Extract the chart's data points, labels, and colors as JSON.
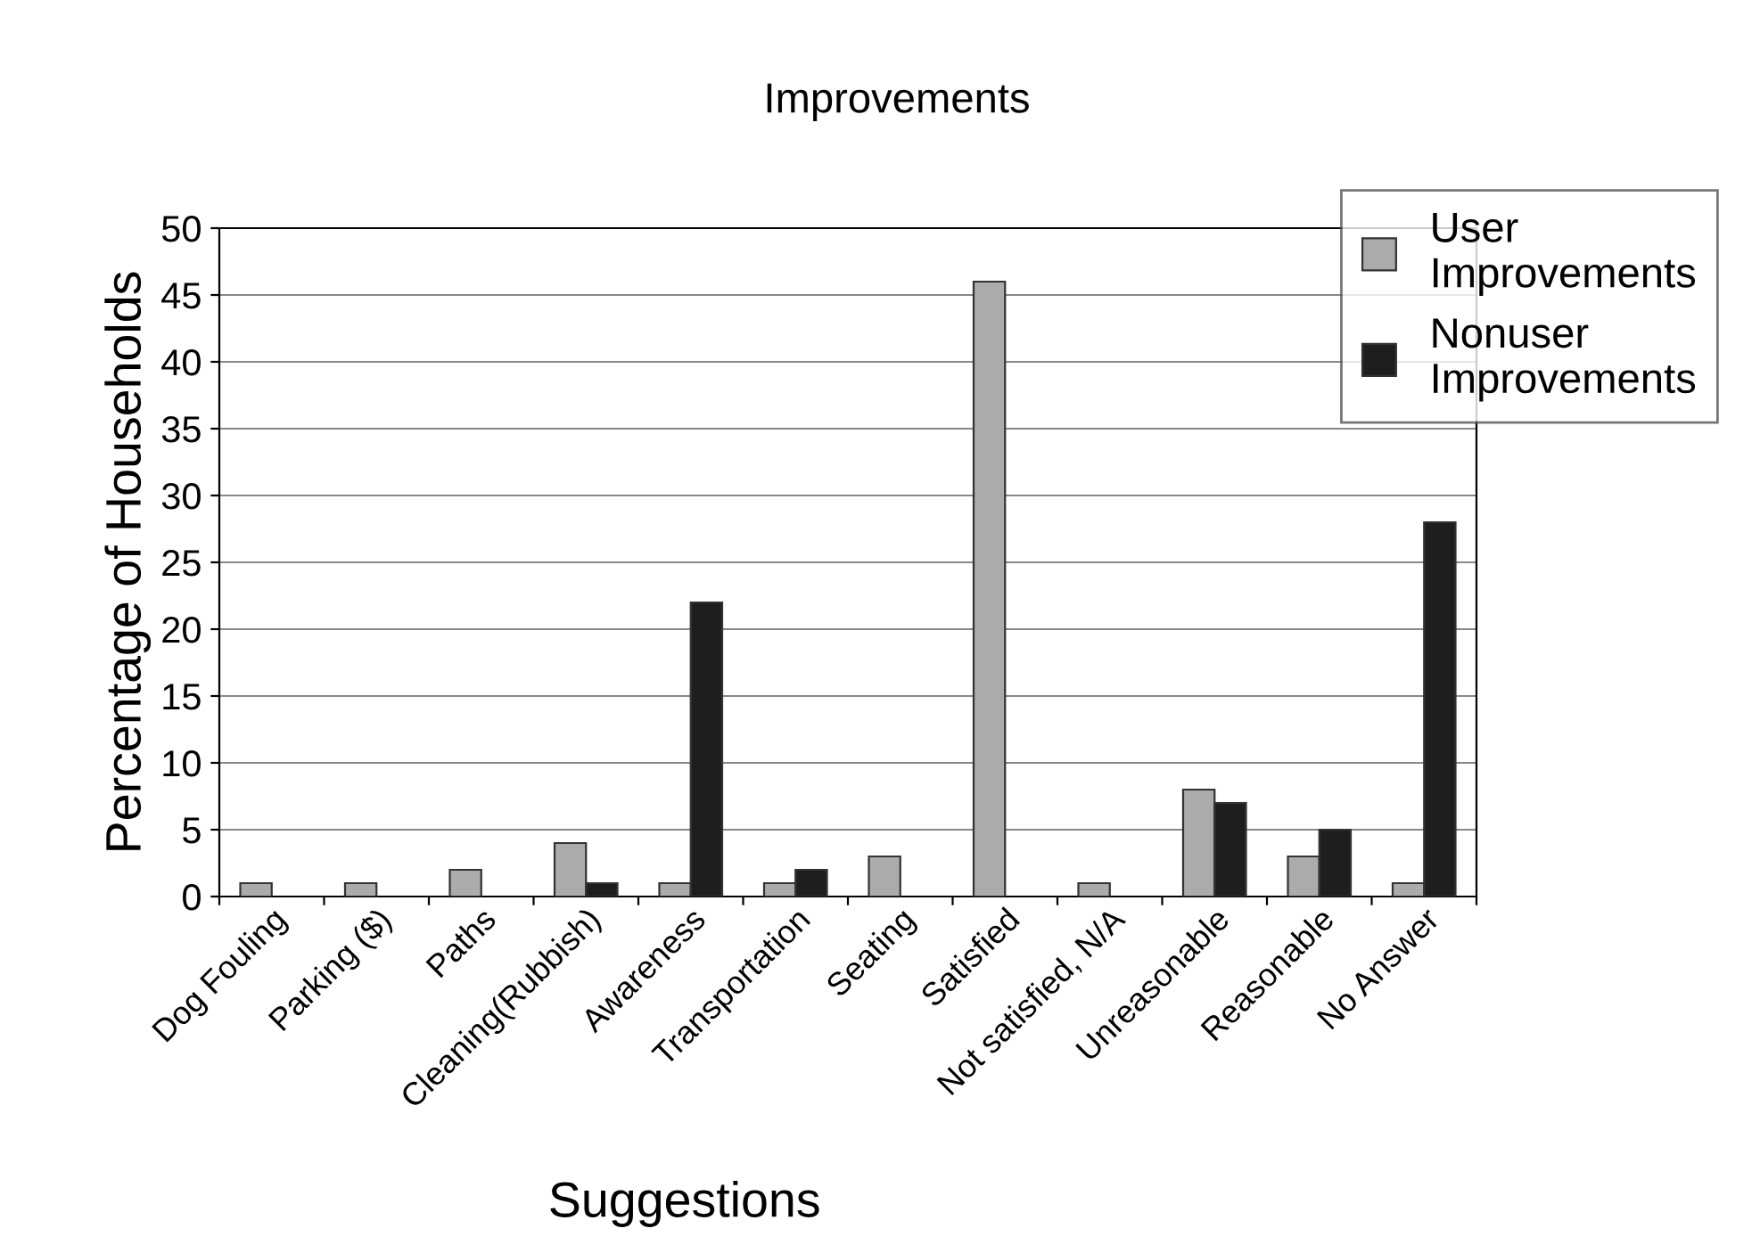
{
  "chart_data": {
    "type": "bar",
    "title": "Improvements",
    "xlabel": "Suggestions",
    "ylabel": "Percentage of Households",
    "categories": [
      "Dog Fouling",
      "Parking ($)",
      "Paths",
      "Cleaning(Rubbish)",
      "Awareness",
      "Transportation",
      "Seating",
      "Satisfied",
      "Not satisfied, N/A",
      "Unreasonable",
      "Reasonable",
      "No Answer"
    ],
    "series": [
      {
        "name": "User\nImprovements",
        "color": "#ababab",
        "values": [
          1,
          1,
          2,
          4,
          1,
          1,
          3,
          46,
          1,
          8,
          3,
          1
        ]
      },
      {
        "name": "Nonuser\nImprovements",
        "color": "#1e1e1e",
        "values": [
          null,
          null,
          null,
          1,
          22,
          2,
          null,
          null,
          null,
          7,
          5,
          28
        ]
      }
    ],
    "ylim": [
      0,
      50
    ],
    "yticks": [
      0,
      5,
      10,
      15,
      20,
      25,
      30,
      35,
      40,
      45,
      50
    ],
    "grid": "y",
    "legend": "top right"
  }
}
